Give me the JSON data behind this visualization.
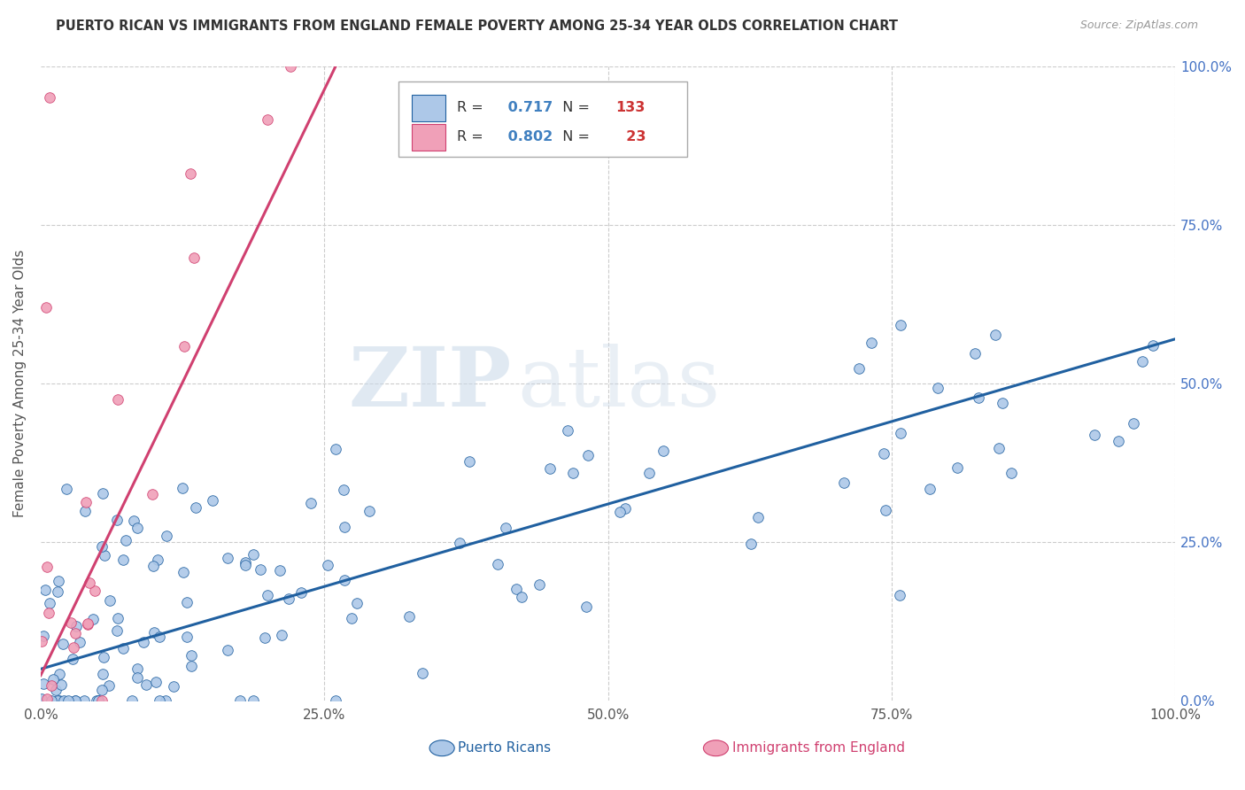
{
  "title": "PUERTO RICAN VS IMMIGRANTS FROM ENGLAND FEMALE POVERTY AMONG 25-34 YEAR OLDS CORRELATION CHART",
  "source": "Source: ZipAtlas.com",
  "ylabel": "Female Poverty Among 25-34 Year Olds",
  "xlim": [
    0,
    1
  ],
  "ylim": [
    0,
    1
  ],
  "xticks": [
    0.0,
    0.25,
    0.5,
    0.75,
    1.0
  ],
  "yticks": [
    0.0,
    0.25,
    0.5,
    0.75,
    1.0
  ],
  "xticklabels": [
    "0.0%",
    "25.0%",
    "50.0%",
    "75.0%",
    "100.0%"
  ],
  "yticklabels_right": [
    "0.0%",
    "25.0%",
    "50.0%",
    "75.0%",
    "100.0%"
  ],
  "blue_R": 0.717,
  "blue_N": 133,
  "pink_R": 0.802,
  "pink_N": 23,
  "blue_color": "#adc8e8",
  "blue_line_color": "#2060a0",
  "pink_color": "#f0a0b8",
  "pink_line_color": "#d04070",
  "legend_label_blue": "Puerto Ricans",
  "legend_label_pink": "Immigrants from England",
  "watermark_zip": "ZIP",
  "watermark_atlas": "atlas",
  "background_color": "#ffffff",
  "blue_trend_x": [
    0.0,
    1.0
  ],
  "blue_trend_y": [
    0.05,
    0.57
  ],
  "pink_trend_x": [
    0.0,
    0.26
  ],
  "pink_trend_y": [
    0.04,
    1.0
  ],
  "grid_color": "#cccccc",
  "title_color": "#333333",
  "source_color": "#999999",
  "tick_color": "#555555",
  "right_tick_color": "#4472c4"
}
